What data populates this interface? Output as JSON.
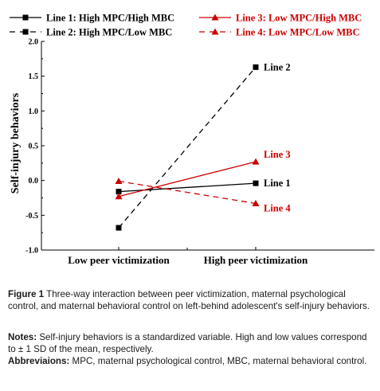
{
  "chart_data": {
    "type": "line",
    "categories": [
      "Low peer victimization",
      "High peer victimization"
    ],
    "ylabel": "Self-injury behaviors",
    "xlabel": "",
    "ylim": [
      -1.0,
      2.0
    ],
    "yticks": [
      "2.0",
      "1.5",
      "1.0",
      "0.5",
      "0.0",
      "-0.5",
      "-1.0"
    ],
    "ytick_values": [
      2.0,
      1.5,
      1.0,
      0.5,
      0.0,
      -0.5,
      -1.0
    ],
    "grid": false,
    "legend_placement": "top",
    "series": [
      {
        "name": "Line 1: High MPC/High MBC",
        "end_label": "Line 1",
        "values": [
          -0.16,
          -0.04
        ],
        "color": "#000000",
        "dashed": false,
        "marker": "square"
      },
      {
        "name": "Line 2: High MPC/Low MBC",
        "end_label": "Line 2",
        "values": [
          -0.68,
          1.63
        ],
        "color": "#000000",
        "dashed": true,
        "marker": "square"
      },
      {
        "name": "Line 3: Low MPC/High MBC",
        "end_label": "Line 3",
        "values": [
          -0.23,
          0.27
        ],
        "color": "#cc0000",
        "dashed": false,
        "marker": "triangle"
      },
      {
        "name": "Line 4: Low MPC/Low MBC",
        "end_label": "Line 4",
        "values": [
          -0.01,
          -0.33
        ],
        "color": "#cc0000",
        "dashed": true,
        "marker": "triangle"
      }
    ]
  },
  "caption": {
    "figure_label": "Figure 1",
    "figure_text": "Three-way interaction between peer victimization, maternal psychological control, and maternal behavioral control on left-behind adolescent's self-injury behaviors.",
    "notes_label": "Notes:",
    "notes_text": "Self-injury behaviors is a standardized variable. High and low values correspond to ± 1 SD of the mean, respectively.",
    "abbrev_label": "Abbreviaions:",
    "abbrev_text": "MPC, maternal psychological control, MBC, maternal behavioral control."
  }
}
